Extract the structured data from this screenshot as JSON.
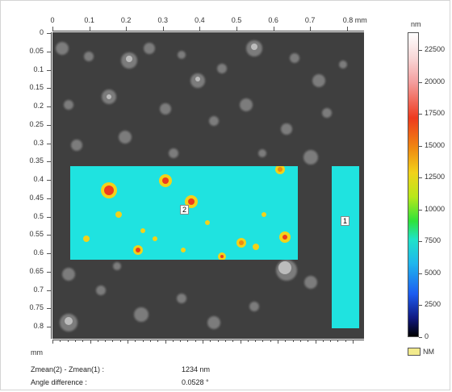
{
  "x_axis": {
    "ticks": [
      "0",
      "0.1",
      "0.2",
      "0.3",
      "0.4",
      "0.5",
      "0.6",
      "0.7",
      "0.8 mm"
    ]
  },
  "y_axis": {
    "ticks": [
      "0",
      "0.05",
      "0.1",
      "0.15",
      "0.2",
      "0.25",
      "0.3",
      "0.35",
      "0.4",
      "0.45",
      "0.5",
      "0.55",
      "0.6",
      "0.65",
      "0.7",
      "0.75",
      "0.8"
    ],
    "unit_label": "mm"
  },
  "colorbar": {
    "unit": "nm",
    "ticks": [
      "22500",
      "20000",
      "17500",
      "15000",
      "12500",
      "10000",
      "7500",
      "5000",
      "2500",
      "0"
    ],
    "nm_legend": "NM",
    "nm_color": "#f2ea8c",
    "region_color": "#1fe3e0"
  },
  "regions": [
    {
      "label": "2"
    },
    {
      "label": "1"
    }
  ],
  "results": {
    "zmean_label": "Zmean(2) - Zmean(1) :",
    "zmean_value": "1234 nm",
    "angle_label": "Angle difference :",
    "angle_value": "0.0528 °"
  }
}
